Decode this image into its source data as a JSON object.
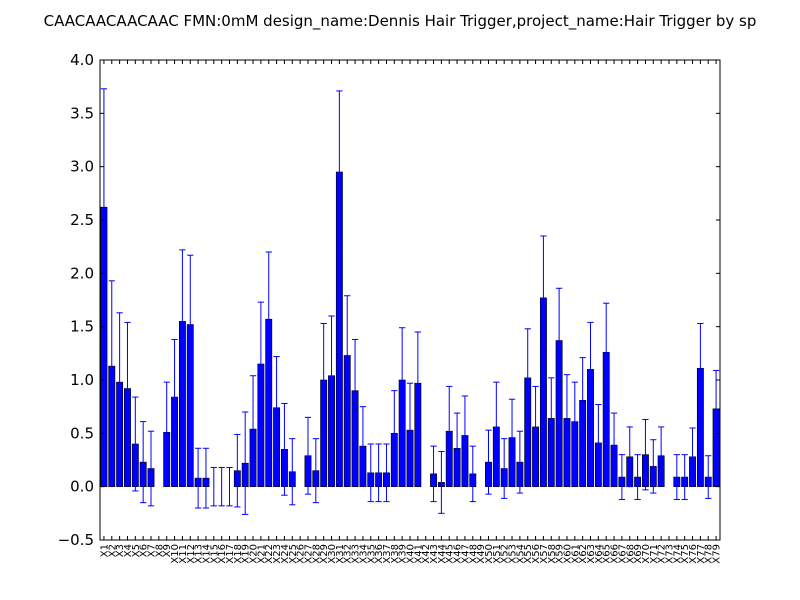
{
  "chart_data": {
    "type": "bar",
    "title": "CAACAACAACAAC  FMN:0mM  design_name:Dennis Hair Trigger,project_name:Hair Trigger by sp",
    "xlabel": "",
    "ylabel": "",
    "ylim": [
      -0.5,
      4.0
    ],
    "yticks": [
      -0.5,
      0.0,
      0.5,
      1.0,
      1.5,
      2.0,
      2.5,
      3.0,
      3.5,
      4.0
    ],
    "ytick_labels": [
      "−0.5",
      "0.0",
      "0.5",
      "1.0",
      "1.5",
      "2.0",
      "2.5",
      "3.0",
      "3.5",
      "4.0"
    ],
    "grid": false,
    "colors": {
      "bar": "#0000ff",
      "bar_edge": "#000000",
      "errorbar": "#0000ff",
      "axes": "#000000"
    },
    "categories": [
      "X1",
      "X2",
      "X3",
      "X4",
      "X5",
      "X6",
      "X7",
      "X8",
      "X9",
      "X10",
      "X11",
      "X12",
      "X13",
      "X14",
      "X15",
      "X16",
      "X17",
      "X18",
      "X19",
      "X20",
      "X21",
      "X22",
      "X23",
      "X24",
      "X25",
      "X26",
      "X27",
      "X28",
      "X29",
      "X30",
      "X31",
      "X32",
      "X33",
      "X34",
      "X35",
      "X36",
      "X37",
      "X38",
      "X39",
      "X40",
      "X41",
      "X42",
      "X43",
      "X44",
      "X45",
      "X46",
      "X47",
      "X48",
      "X49",
      "X50",
      "X51",
      "X52",
      "X53",
      "X54",
      "X55",
      "X56",
      "X57",
      "X58",
      "X59",
      "X60",
      "X61",
      "X62",
      "X63",
      "X64",
      "X65",
      "X66",
      "X67",
      "X68",
      "X69",
      "X70",
      "X71",
      "X72",
      "X73",
      "X74",
      "X75",
      "X76",
      "X77",
      "X78",
      "X79"
    ],
    "values": [
      2.62,
      1.13,
      0.98,
      0.92,
      0.4,
      0.23,
      0.17,
      0.0,
      0.51,
      0.84,
      1.55,
      1.52,
      0.08,
      0.08,
      0.0,
      0.0,
      0.0,
      0.15,
      0.22,
      0.54,
      1.15,
      1.57,
      0.74,
      0.35,
      0.14,
      0.0,
      0.29,
      0.15,
      1.0,
      1.04,
      2.95,
      1.23,
      0.9,
      0.38,
      0.13,
      0.13,
      0.13,
      0.5,
      1.0,
      0.53,
      0.97,
      0.0,
      0.12,
      0.04,
      0.52,
      0.36,
      0.48,
      0.12,
      0.0,
      0.23,
      0.56,
      0.17,
      0.46,
      0.23,
      1.02,
      0.56,
      1.77,
      0.64,
      1.37,
      0.64,
      0.61,
      0.81,
      1.1,
      0.41,
      1.26,
      0.39,
      0.09,
      0.28,
      0.09,
      0.3,
      0.19,
      0.29,
      0.0,
      0.09,
      0.09,
      0.28,
      1.11,
      0.09,
      0.73
    ],
    "errors": [
      1.11,
      0.8,
      0.65,
      0.62,
      0.44,
      0.38,
      0.35,
      0.0,
      0.47,
      0.54,
      0.67,
      0.65,
      0.28,
      0.28,
      0.18,
      0.18,
      0.18,
      0.34,
      0.48,
      0.5,
      0.58,
      0.63,
      0.48,
      0.43,
      0.31,
      0.0,
      0.36,
      0.3,
      0.53,
      0.56,
      0.76,
      0.56,
      0.48,
      0.37,
      0.27,
      0.27,
      0.27,
      0.4,
      0.49,
      0.44,
      0.48,
      0.0,
      0.26,
      0.29,
      0.42,
      0.33,
      0.37,
      0.26,
      0.0,
      0.3,
      0.42,
      0.28,
      0.36,
      0.29,
      0.46,
      0.38,
      0.58,
      0.38,
      0.49,
      0.41,
      0.37,
      0.4,
      0.44,
      0.36,
      0.46,
      0.3,
      0.21,
      0.28,
      0.21,
      0.33,
      0.25,
      0.27,
      0.0,
      0.21,
      0.21,
      0.27,
      0.42,
      0.2,
      0.36
    ],
    "errorbar_caps": true,
    "x_labels_rotation": "vertical"
  }
}
